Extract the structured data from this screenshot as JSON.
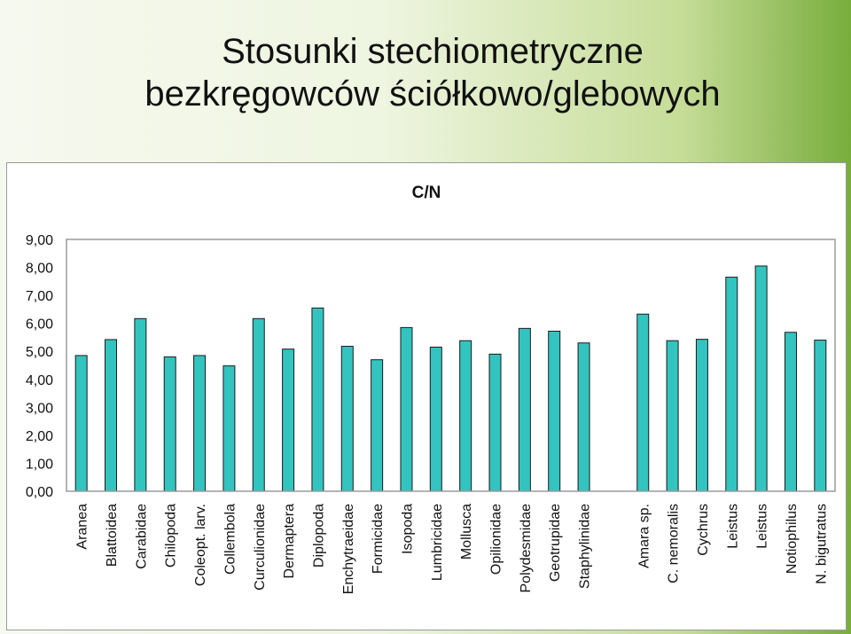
{
  "slide": {
    "title_line1": "Stosunki stechiometryczne",
    "title_line2": "bezkręgowców ściółkowo/glebowych"
  },
  "colors": {
    "bar_fill": "#33c4bf",
    "bar_stroke": "#1a1a1a",
    "plot_border": "#9a9a9a",
    "text": "#111111"
  },
  "chart_data": {
    "type": "bar",
    "title": "C/N",
    "xlabel": "",
    "ylabel": "",
    "ylim": [
      0,
      9
    ],
    "yticks": [
      "0,00",
      "1,00",
      "2,00",
      "3,00",
      "4,00",
      "5,00",
      "6,00",
      "7,00",
      "8,00",
      "9,00"
    ],
    "grid": false,
    "legend": "none",
    "categories": [
      "Aranea",
      "Blattoidea",
      "Carabidae",
      "Chilopoda",
      "Coleopt. larv.",
      "Collembola",
      "Curculionidae",
      "Dermaptera",
      "Diplopoda",
      "Enchytraeidae",
      "Formicidae",
      "Isopoda",
      "Lumbricidae",
      "Mollusca",
      "Opilionidae",
      "Polydesmidae",
      "Geotrupidae",
      "Staphylinidae",
      "",
      "Amara sp.",
      "C. nemoralis",
      "Cychrus",
      "Leistus",
      "Leistus",
      "Notiophilus",
      "N. bigutratus"
    ],
    "values": [
      4.85,
      5.42,
      6.17,
      4.8,
      4.85,
      4.48,
      6.17,
      5.08,
      6.55,
      5.18,
      4.7,
      5.85,
      5.15,
      5.38,
      4.9,
      5.82,
      5.72,
      5.3,
      null,
      6.33,
      5.38,
      5.43,
      7.65,
      8.05,
      5.68,
      5.4
    ]
  }
}
